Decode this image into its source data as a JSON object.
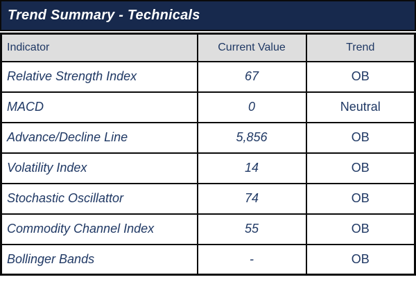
{
  "title": "Trend Summary - Technicals",
  "table": {
    "headers": [
      "Indicator",
      "Current Value",
      "Trend"
    ],
    "rows": [
      {
        "indicator": "Relative Strength Index",
        "value": "67",
        "trend": "OB",
        "trend_state": "ob"
      },
      {
        "indicator": "MACD",
        "value": "0",
        "trend": "Neutral",
        "trend_state": "neutral"
      },
      {
        "indicator": "Advance/Decline Line",
        "value": "5,856",
        "trend": "OB",
        "trend_state": "ob"
      },
      {
        "indicator": "Volatility Index",
        "value": "14",
        "trend": "OB",
        "trend_state": "ob"
      },
      {
        "indicator": "Stochastic Oscillattor",
        "value": "74",
        "trend": "OB",
        "trend_state": "ob"
      },
      {
        "indicator": "Commodity Channel Index",
        "value": "55",
        "trend": "OB",
        "trend_state": "ob"
      },
      {
        "indicator": "Bollinger Bands",
        "value": "-",
        "trend": "OB",
        "trend_state": "ob"
      }
    ]
  },
  "colors": {
    "title_bg": "#17294d",
    "header_bg": "#dedede",
    "ob_bg": "#fb9a9a",
    "neutral_bg": "#ffffff",
    "text_navy": "#1f3864",
    "title_text": "#ffffff",
    "border": "#0a0a0a"
  },
  "chart_data": {
    "type": "table",
    "title": "Trend Summary - Technicals",
    "columns": [
      "Indicator",
      "Current Value",
      "Trend"
    ],
    "rows": [
      [
        "Relative Strength Index",
        67,
        "OB"
      ],
      [
        "MACD",
        0,
        "Neutral"
      ],
      [
        "Advance/Decline Line",
        5856,
        "OB"
      ],
      [
        "Volatility Index",
        14,
        "OB"
      ],
      [
        "Stochastic Oscillattor",
        74,
        "OB"
      ],
      [
        "Commodity Channel Index",
        55,
        "OB"
      ],
      [
        "Bollinger Bands",
        "-",
        "OB"
      ]
    ],
    "notes": "OB cells highlighted salmon-pink; Neutral cell white; all text navy blue"
  }
}
